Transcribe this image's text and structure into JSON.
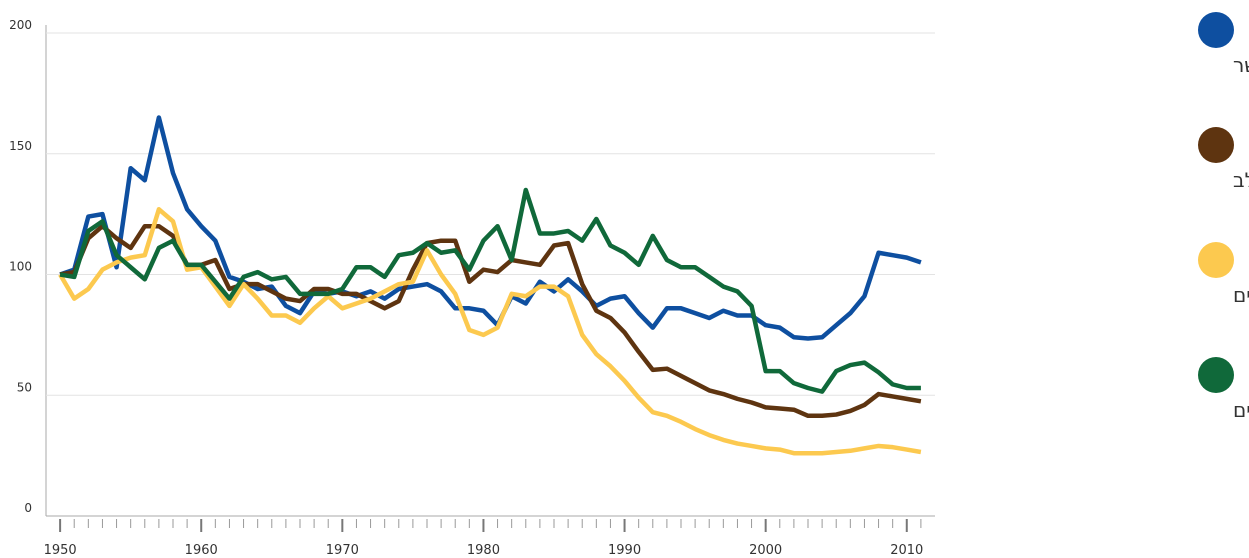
{
  "chart_data": {
    "type": "line",
    "x": [
      1950,
      1951,
      1952,
      1953,
      1954,
      1955,
      1956,
      1957,
      1958,
      1959,
      1960,
      1961,
      1962,
      1963,
      1964,
      1965,
      1966,
      1967,
      1968,
      1969,
      1970,
      1971,
      1972,
      1973,
      1974,
      1975,
      1976,
      1977,
      1978,
      1979,
      1980,
      1981,
      1982,
      1983,
      1984,
      1985,
      1986,
      1987,
      1988,
      1989,
      1990,
      1991,
      1992,
      1993,
      1994,
      1995,
      1996,
      1997,
      1998,
      1999,
      2000,
      2001,
      2002,
      2003,
      2004,
      2005,
      2006,
      2007,
      2008,
      2009,
      2010,
      2011
    ],
    "series": [
      {
        "name": "בשר",
        "color": "#0e4fa0",
        "values": [
          100,
          102,
          124,
          125,
          103,
          144,
          139,
          165,
          142,
          127,
          120,
          114,
          99,
          97,
          94,
          95,
          87,
          84,
          93,
          92,
          93,
          91,
          93,
          90,
          94,
          95,
          96,
          93,
          86,
          86,
          85,
          79,
          91,
          88,
          97,
          93,
          98,
          93,
          87,
          90,
          91,
          84,
          78,
          86,
          86,
          84,
          82,
          85,
          83,
          83,
          79,
          78,
          74,
          73.5,
          74,
          79,
          84,
          91,
          109,
          108,
          107,
          105
        ]
      },
      {
        "name": "חלב",
        "color": "#5e3410",
        "values": [
          100,
          101,
          115,
          120,
          115,
          111,
          120,
          120,
          116,
          104,
          104,
          106,
          94,
          96,
          96,
          93,
          90,
          89,
          94,
          94,
          92,
          92,
          89,
          86,
          89,
          102,
          113,
          114,
          114,
          97,
          102,
          101,
          106,
          105,
          104,
          112,
          113,
          96,
          85,
          82,
          76,
          68,
          60.5,
          61,
          58,
          55,
          52,
          50.5,
          48.5,
          47,
          45,
          44.5,
          44,
          41.5,
          41.5,
          42,
          43.5,
          46,
          50.5,
          49.5,
          48.5,
          47.5
        ]
      },
      {
        "name": "ביצים",
        "color": "#fcc94f",
        "values": [
          100,
          90,
          94,
          102,
          105,
          107,
          108,
          127,
          122,
          102,
          103,
          95,
          87,
          96,
          90,
          83,
          83,
          80,
          86,
          91,
          86,
          88,
          90,
          93,
          96,
          97,
          110,
          100,
          92,
          77,
          75,
          78,
          92,
          91,
          95,
          95,
          91,
          75,
          67,
          62,
          56,
          49,
          43,
          41.5,
          39,
          36,
          33.5,
          31.5,
          30,
          29,
          28,
          27.5,
          26,
          26,
          26,
          26.5,
          27,
          28,
          29,
          28.5,
          27.5,
          26.5
        ]
      },
      {
        "name": "דגים",
        "color": "#10693a",
        "values": [
          100,
          99,
          118,
          122,
          108,
          103,
          98,
          111,
          114,
          104,
          104,
          97,
          90,
          99,
          101,
          98,
          99,
          92,
          92,
          92,
          94,
          103,
          103,
          99,
          108,
          109,
          113,
          109,
          110,
          102,
          114,
          120,
          106,
          135,
          117,
          117,
          118,
          114,
          123,
          112,
          109,
          104,
          116,
          106,
          103,
          103,
          99,
          95,
          93,
          87,
          60,
          60,
          55,
          53,
          51.5,
          60,
          62.5,
          63.5,
          59.5,
          54.5,
          53,
          53
        ]
      }
    ],
    "xlim": [
      1949,
      2012
    ],
    "xticks": [
      1950,
      1960,
      1970,
      1980,
      1990,
      2000,
      2010
    ],
    "ylim": [
      0,
      200
    ],
    "yticks": [
      0,
      50,
      100,
      150,
      200
    ],
    "grid": true,
    "legend": "right"
  }
}
